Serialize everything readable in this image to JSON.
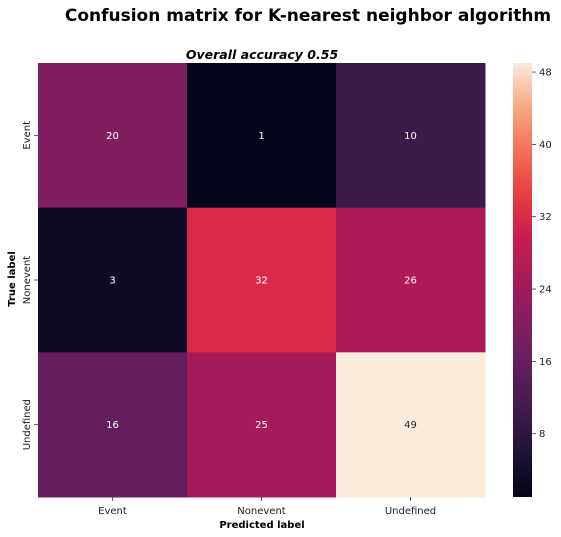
{
  "chart_data": {
    "type": "heatmap",
    "title": "Confusion matrix for K-nearest neighbor algorithm",
    "subtitle": "Overall accuracy 0.55",
    "xlabel": "Predicted label",
    "ylabel": "True label",
    "x_categories": [
      "Event",
      "Nonevent",
      "Undefined"
    ],
    "y_categories": [
      "Event",
      "Nonevent",
      "Undefined"
    ],
    "values": [
      [
        20,
        1,
        10
      ],
      [
        3,
        32,
        26
      ],
      [
        16,
        25,
        49
      ]
    ],
    "colorbar": {
      "min": 1,
      "max": 49,
      "ticks": [
        "8",
        "16",
        "24",
        "32",
        "40",
        "48"
      ],
      "colormap": "rocket"
    },
    "annotation_colors": {
      "on_dark": "#ffffff",
      "on_light": "#262626"
    }
  }
}
